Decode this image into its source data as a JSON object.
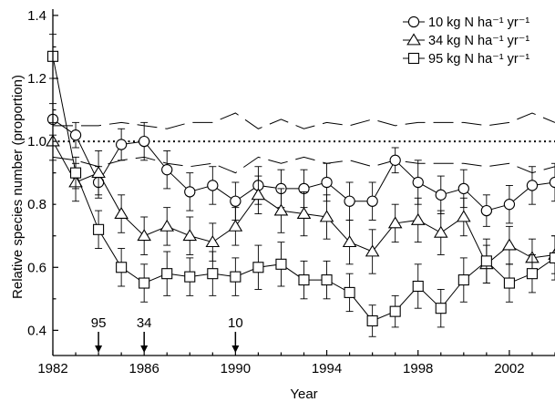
{
  "chart_data": {
    "type": "line",
    "xlabel": "Year",
    "ylabel": "Relative species number (proportion)",
    "xlim": [
      1982,
      2004
    ],
    "ylim": [
      0.32,
      1.42
    ],
    "x_ticks": [
      1982,
      1986,
      1990,
      1994,
      1998,
      2002
    ],
    "x_tick_labels": [
      "1982",
      "1986",
      "1990",
      "1994",
      "1998",
      "2002"
    ],
    "y_ticks": [
      0.4,
      0.6,
      0.8,
      1.0,
      1.2,
      1.4
    ],
    "y_tick_labels": [
      "0.4",
      "0.6",
      "0.8",
      "1.0",
      "1.2",
      "1.4"
    ],
    "x": [
      1982,
      1983,
      1984,
      1985,
      1986,
      1987,
      1988,
      1989,
      1990,
      1991,
      1992,
      1993,
      1994,
      1995,
      1996,
      1997,
      1998,
      1999,
      2000,
      2001,
      2002,
      2003,
      2004
    ],
    "series": [
      {
        "name": "10 kg N ha⁻¹ yr⁻¹",
        "marker": "circle",
        "values": [
          1.07,
          1.02,
          0.87,
          0.99,
          1.0,
          0.91,
          0.84,
          0.86,
          0.81,
          0.86,
          0.85,
          0.85,
          0.87,
          0.81,
          0.81,
          0.94,
          0.87,
          0.83,
          0.85,
          0.78,
          0.8,
          0.86,
          0.87
        ],
        "errors": [
          0.05,
          0.04,
          0.05,
          0.05,
          0.06,
          0.06,
          0.06,
          0.06,
          0.06,
          0.06,
          0.06,
          0.06,
          0.06,
          0.06,
          0.06,
          0.04,
          0.07,
          0.06,
          0.06,
          0.05,
          0.06,
          0.06,
          0.06
        ]
      },
      {
        "name": "34 kg N ha⁻¹ yr⁻¹",
        "marker": "triangle",
        "values": [
          1.0,
          0.87,
          0.9,
          0.77,
          0.7,
          0.73,
          0.7,
          0.68,
          0.73,
          0.83,
          0.78,
          0.77,
          0.76,
          0.68,
          0.65,
          0.74,
          0.75,
          0.71,
          0.76,
          0.61,
          0.67,
          0.63,
          0.64
        ],
        "errors": [
          0.06,
          0.06,
          0.07,
          0.06,
          0.06,
          0.06,
          0.06,
          0.06,
          0.06,
          0.06,
          0.07,
          0.07,
          0.07,
          0.07,
          0.07,
          0.06,
          0.07,
          0.07,
          0.06,
          0.06,
          0.06,
          0.06,
          0.06
        ]
      },
      {
        "name": "95 kg N ha⁻¹ yr⁻¹",
        "marker": "square",
        "values": [
          1.27,
          0.9,
          0.72,
          0.6,
          0.55,
          0.58,
          0.57,
          0.58,
          0.57,
          0.6,
          0.61,
          0.56,
          0.56,
          0.52,
          0.43,
          0.46,
          0.54,
          0.47,
          0.56,
          0.62,
          0.55,
          0.58,
          0.63
        ],
        "errors": [
          0.07,
          0.05,
          0.06,
          0.06,
          0.06,
          0.07,
          0.06,
          0.07,
          0.06,
          0.07,
          0.07,
          0.06,
          0.06,
          0.06,
          0.05,
          0.05,
          0.07,
          0.06,
          0.07,
          0.07,
          0.06,
          0.06,
          0.07
        ]
      }
    ],
    "envelope_upper": [
      1.05,
      1.05,
      1.05,
      1.06,
      1.05,
      1.04,
      1.06,
      1.06,
      1.09,
      1.04,
      1.07,
      1.04,
      1.06,
      1.05,
      1.07,
      1.05,
      1.06,
      1.06,
      1.06,
      1.05,
      1.06,
      1.09,
      1.06
    ],
    "envelope_lower": [
      0.95,
      0.94,
      0.92,
      0.94,
      0.95,
      0.93,
      0.92,
      0.93,
      0.9,
      0.95,
      0.93,
      0.95,
      0.93,
      0.94,
      0.92,
      0.94,
      0.93,
      0.93,
      0.93,
      0.92,
      0.93,
      0.9,
      0.92
    ],
    "reference_line": 1.0,
    "annotations": [
      {
        "label": "95",
        "x": 1984
      },
      {
        "label": "34",
        "x": 1986
      },
      {
        "label": "10",
        "x": 1990
      }
    ],
    "legend_position": "top-right",
    "grid": false
  }
}
